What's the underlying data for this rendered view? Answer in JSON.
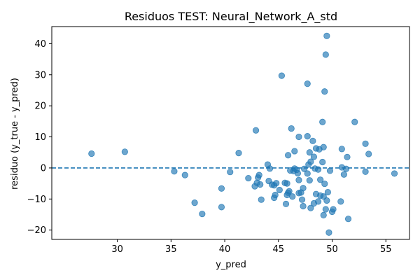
{
  "chart_data": {
    "type": "scatter",
    "title": "Residuos TEST: Neural_Network_A_std",
    "xlabel": "y_pred",
    "ylabel": "residuo (y_true - y_pred)",
    "xlim": [
      23.9,
      57.2
    ],
    "ylim": [
      -23.0,
      45.5
    ],
    "x_ticks": [
      30,
      35,
      40,
      45,
      50,
      55
    ],
    "y_ticks": [
      -20,
      -10,
      0,
      10,
      20,
      30,
      40
    ],
    "reference_line": {
      "y": 0,
      "style": "dashed",
      "color": "#1f77b4"
    },
    "marker_color": "#1f77b4",
    "grid": false,
    "points": [
      {
        "x": 27.6,
        "y": 4.6
      },
      {
        "x": 30.7,
        "y": 5.2
      },
      {
        "x": 35.3,
        "y": -1.1
      },
      {
        "x": 36.3,
        "y": -2.3
      },
      {
        "x": 37.2,
        "y": -11.2
      },
      {
        "x": 37.9,
        "y": -14.8
      },
      {
        "x": 39.7,
        "y": -6.6
      },
      {
        "x": 39.7,
        "y": -12.6
      },
      {
        "x": 40.5,
        "y": -1.3
      },
      {
        "x": 41.3,
        "y": 4.8
      },
      {
        "x": 42.2,
        "y": -3.3
      },
      {
        "x": 42.8,
        "y": -5.9
      },
      {
        "x": 42.9,
        "y": 12.1
      },
      {
        "x": 43.0,
        "y": -4.8
      },
      {
        "x": 43.1,
        "y": -3.1
      },
      {
        "x": 43.2,
        "y": -2.3
      },
      {
        "x": 43.3,
        "y": -5.3
      },
      {
        "x": 43.4,
        "y": -10.2
      },
      {
        "x": 44.0,
        "y": 1.1
      },
      {
        "x": 44.1,
        "y": -4.2
      },
      {
        "x": 44.2,
        "y": -0.2
      },
      {
        "x": 44.4,
        "y": -5.4
      },
      {
        "x": 44.6,
        "y": -5.6
      },
      {
        "x": 44.6,
        "y": -9.6
      },
      {
        "x": 44.7,
        "y": -8.7
      },
      {
        "x": 44.8,
        "y": -4.9
      },
      {
        "x": 45.1,
        "y": -7.1
      },
      {
        "x": 45.3,
        "y": 29.7
      },
      {
        "x": 45.6,
        "y": -4.8
      },
      {
        "x": 45.7,
        "y": -11.6
      },
      {
        "x": 45.8,
        "y": -5.0
      },
      {
        "x": 45.8,
        "y": -8.7
      },
      {
        "x": 45.9,
        "y": 4.1
      },
      {
        "x": 45.9,
        "y": -8.0
      },
      {
        "x": 46.0,
        "y": -7.5
      },
      {
        "x": 46.1,
        "y": -0.8
      },
      {
        "x": 46.2,
        "y": 12.7
      },
      {
        "x": 46.3,
        "y": -9.2
      },
      {
        "x": 46.4,
        "y": -1.0
      },
      {
        "x": 46.5,
        "y": 5.4
      },
      {
        "x": 46.5,
        "y": -0.2
      },
      {
        "x": 46.7,
        "y": -0.6
      },
      {
        "x": 46.8,
        "y": -1.7
      },
      {
        "x": 46.9,
        "y": 10.0
      },
      {
        "x": 46.9,
        "y": -3.9
      },
      {
        "x": 46.9,
        "y": -8.1
      },
      {
        "x": 47.1,
        "y": -7.9
      },
      {
        "x": 47.2,
        "y": -10.2
      },
      {
        "x": 47.3,
        "y": -12.3
      },
      {
        "x": 47.3,
        "y": -6.5
      },
      {
        "x": 47.4,
        "y": -0.3
      },
      {
        "x": 47.7,
        "y": 27.1
      },
      {
        "x": 47.7,
        "y": 10.2
      },
      {
        "x": 47.7,
        "y": -1.8
      },
      {
        "x": 47.8,
        "y": 1.1
      },
      {
        "x": 47.9,
        "y": 5.0
      },
      {
        "x": 47.9,
        "y": -4.0
      },
      {
        "x": 48.0,
        "y": 2.0
      },
      {
        "x": 48.0,
        "y": -12.9
      },
      {
        "x": 48.2,
        "y": 8.7
      },
      {
        "x": 48.3,
        "y": 3.6
      },
      {
        "x": 48.3,
        "y": -11.4
      },
      {
        "x": 48.4,
        "y": -0.2
      },
      {
        "x": 48.5,
        "y": 6.3
      },
      {
        "x": 48.5,
        "y": -8.4
      },
      {
        "x": 48.7,
        "y": -0.5
      },
      {
        "x": 48.7,
        "y": -10.8
      },
      {
        "x": 48.8,
        "y": 6.0
      },
      {
        "x": 48.9,
        "y": -3.8
      },
      {
        "x": 48.9,
        "y": -8.9
      },
      {
        "x": 49.1,
        "y": 14.8
      },
      {
        "x": 49.1,
        "y": 1.9
      },
      {
        "x": 49.2,
        "y": 6.7
      },
      {
        "x": 49.2,
        "y": -9.2
      },
      {
        "x": 49.2,
        "y": -15.2
      },
      {
        "x": 49.3,
        "y": 24.6
      },
      {
        "x": 49.3,
        "y": -5.1
      },
      {
        "x": 49.4,
        "y": 36.5
      },
      {
        "x": 49.4,
        "y": -13.3
      },
      {
        "x": 49.5,
        "y": 42.5
      },
      {
        "x": 49.5,
        "y": -10.5
      },
      {
        "x": 49.6,
        "y": -7.8
      },
      {
        "x": 49.7,
        "y": -20.8
      },
      {
        "x": 49.8,
        "y": -0.9
      },
      {
        "x": 50.0,
        "y": -14.1
      },
      {
        "x": 50.1,
        "y": -13.3
      },
      {
        "x": 50.8,
        "y": -10.8
      },
      {
        "x": 50.9,
        "y": 6.1
      },
      {
        "x": 50.9,
        "y": 0.2
      },
      {
        "x": 51.1,
        "y": -2.1
      },
      {
        "x": 51.3,
        "y": -0.3
      },
      {
        "x": 51.4,
        "y": 3.5
      },
      {
        "x": 51.5,
        "y": -16.4
      },
      {
        "x": 52.1,
        "y": 14.8
      },
      {
        "x": 53.1,
        "y": 7.8
      },
      {
        "x": 53.1,
        "y": -1.2
      },
      {
        "x": 53.4,
        "y": 4.5
      },
      {
        "x": 55.8,
        "y": -1.8
      }
    ]
  }
}
